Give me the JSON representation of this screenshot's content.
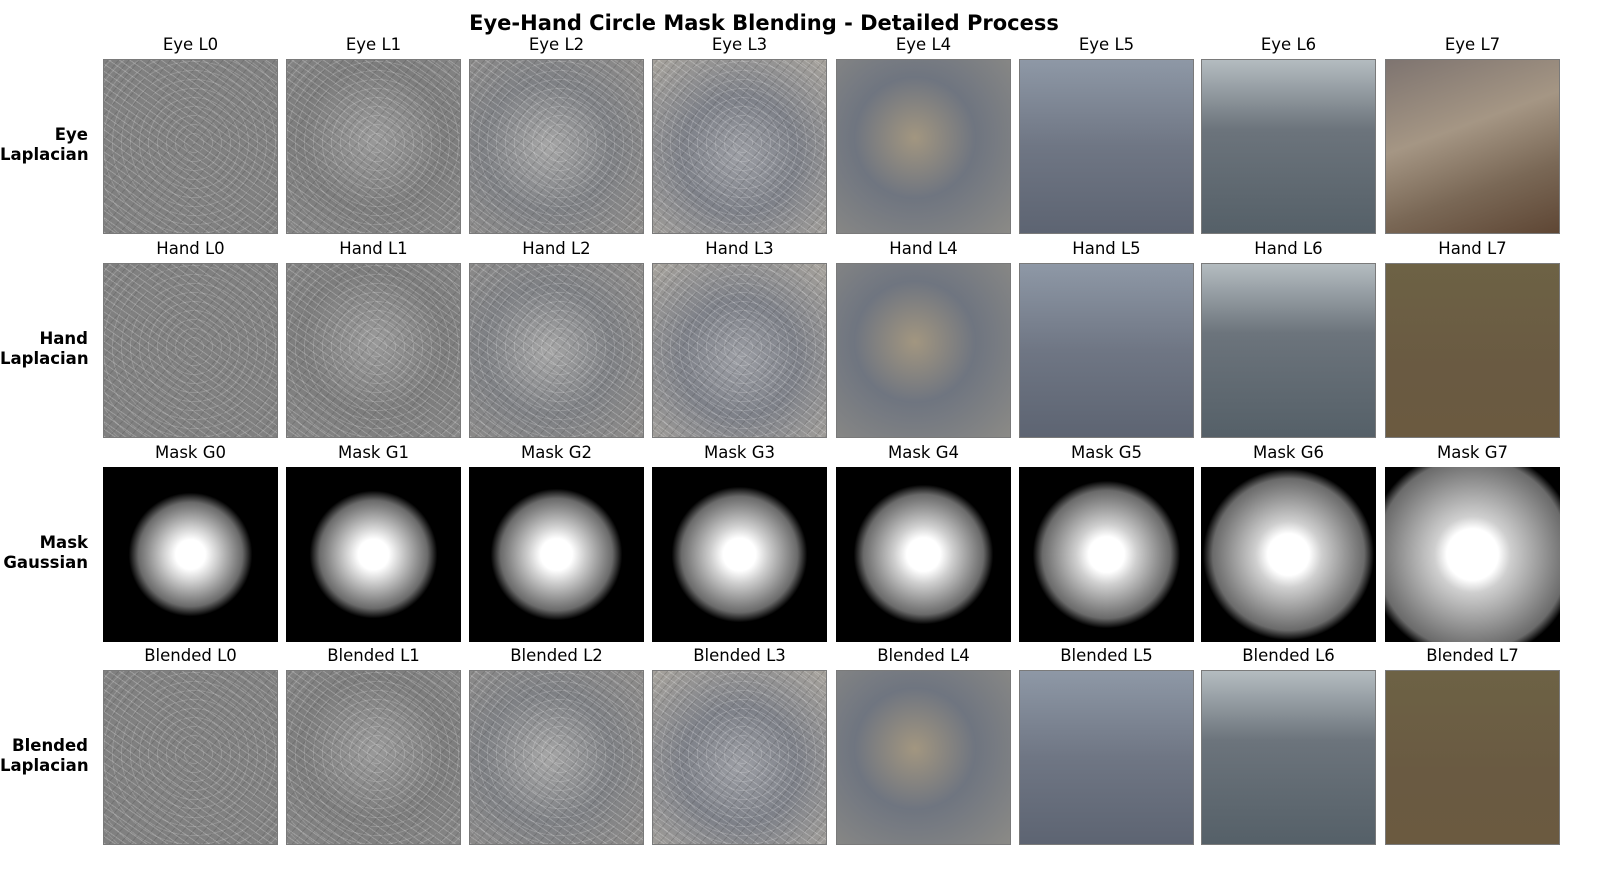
{
  "figure": {
    "title": "Eye-Hand Circle Mask Blending - Detailed Process"
  },
  "rows": [
    {
      "label_line1": "Eye",
      "label_line2": "Laplacian",
      "kind": "laplacian",
      "titles": [
        "Eye L0",
        "Eye L1",
        "Eye L2",
        "Eye L3",
        "Eye L4",
        "Eye L5",
        "Eye L6",
        "Eye L7"
      ]
    },
    {
      "label_line1": "Hand",
      "label_line2": "Laplacian",
      "kind": "laplacian",
      "titles": [
        "Hand L0",
        "Hand L1",
        "Hand L2",
        "Hand L3",
        "Hand L4",
        "Hand L5",
        "Hand L6",
        "Hand L7"
      ]
    },
    {
      "label_line1": "Mask",
      "label_line2": "Gaussian",
      "kind": "mask",
      "titles": [
        "Mask G0",
        "Mask G1",
        "Mask G2",
        "Mask G3",
        "Mask G4",
        "Mask G5",
        "Mask G6",
        "Mask G7"
      ]
    },
    {
      "label_line1": "Blended",
      "label_line2": "Laplacian",
      "kind": "laplacian",
      "titles": [
        "Blended L0",
        "Blended L1",
        "Blended L2",
        "Blended L3",
        "Blended L4",
        "Blended L5",
        "Blended L6",
        "Blended L7"
      ]
    }
  ],
  "tile_colors": {
    "laplacian_gray": "#808080",
    "level6_tone": "#556068",
    "level7_eye": "#7a6856",
    "level7_hand": "#6b5a40",
    "mask_background": "#000000",
    "mask_center": "#ffffff"
  }
}
